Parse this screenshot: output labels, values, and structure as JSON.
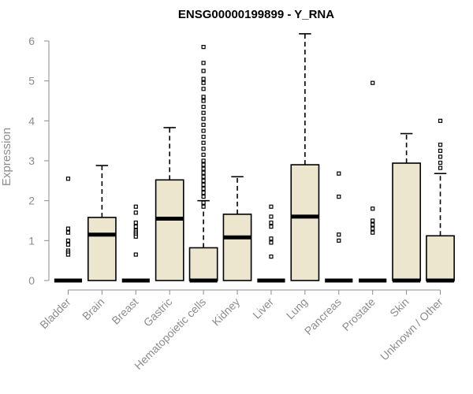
{
  "chart_data": {
    "type": "boxplot",
    "title": "ENSG00000199899 - Y_RNA",
    "xlabel": "",
    "ylabel": "Expression",
    "ylim": [
      0,
      6.2
    ],
    "yticks": [
      0,
      1,
      2,
      3,
      4,
      5,
      6
    ],
    "grid": false,
    "colors": {
      "box_fill": "#ede6cf",
      "axis": "#8c8c8c",
      "text": "#8c8c8c"
    },
    "categories": [
      "Bladder",
      "Brain",
      "Breast",
      "Gastric",
      "Hematopoietic cells",
      "Kidney",
      "Liver",
      "Lung",
      "Pancreas",
      "Prostate",
      "Skin",
      "Unknown / Other"
    ],
    "boxes": [
      {
        "q1": 0,
        "median": 0,
        "q3": 0,
        "lower": 0,
        "upper": 0,
        "outliers": [
          2.55,
          1.3,
          1.2,
          1.0,
          0.9,
          0.75,
          0.7,
          0.65
        ]
      },
      {
        "q1": 0,
        "median": 1.15,
        "q3": 1.58,
        "lower": 0,
        "upper": 2.88,
        "outliers": []
      },
      {
        "q1": 0,
        "median": 0,
        "q3": 0,
        "lower": 0,
        "upper": 0,
        "outliers": [
          1.85,
          1.7,
          1.45,
          1.35,
          1.25,
          1.2,
          1.15,
          1.1,
          0.65
        ]
      },
      {
        "q1": 0,
        "median": 1.55,
        "q3": 2.52,
        "lower": 0,
        "upper": 3.83,
        "outliers": []
      },
      {
        "q1": 0,
        "median": 0,
        "q3": 0.82,
        "lower": 0,
        "upper": 2.0,
        "outliers": [
          5.85,
          5.45,
          5.25,
          5.05,
          4.95,
          4.8,
          4.6,
          4.5,
          4.35,
          4.2,
          4.05,
          3.9,
          3.75,
          3.6,
          3.45,
          3.3,
          3.15,
          3.0,
          2.9,
          2.8,
          2.7,
          2.6,
          2.5,
          2.4,
          2.3,
          2.2,
          2.1,
          1.95,
          1.85
        ]
      },
      {
        "q1": 0,
        "median": 1.08,
        "q3": 1.66,
        "lower": 0,
        "upper": 2.6,
        "outliers": []
      },
      {
        "q1": 0,
        "median": 0,
        "q3": 0,
        "lower": 0,
        "upper": 0,
        "outliers": [
          1.85,
          1.6,
          1.45,
          1.35,
          1.05,
          0.95,
          0.6
        ]
      },
      {
        "q1": 0,
        "median": 1.6,
        "q3": 2.9,
        "lower": 0,
        "upper": 6.18,
        "outliers": []
      },
      {
        "q1": 0,
        "median": 0,
        "q3": 0,
        "lower": 0,
        "upper": 0,
        "outliers": [
          2.68,
          2.1,
          1.15,
          1.0
        ]
      },
      {
        "q1": 0,
        "median": 0,
        "q3": 0,
        "lower": 0,
        "upper": 0,
        "outliers": [
          4.95,
          1.8,
          1.5,
          1.4,
          1.3,
          1.2
        ]
      },
      {
        "q1": 0,
        "median": 0,
        "q3": 2.94,
        "lower": 0,
        "upper": 3.68,
        "outliers": []
      },
      {
        "q1": 0,
        "median": 0,
        "q3": 1.12,
        "lower": 0,
        "upper": 2.68,
        "outliers": [
          4.0,
          3.4,
          3.25,
          3.1,
          2.95,
          2.82
        ]
      }
    ]
  }
}
